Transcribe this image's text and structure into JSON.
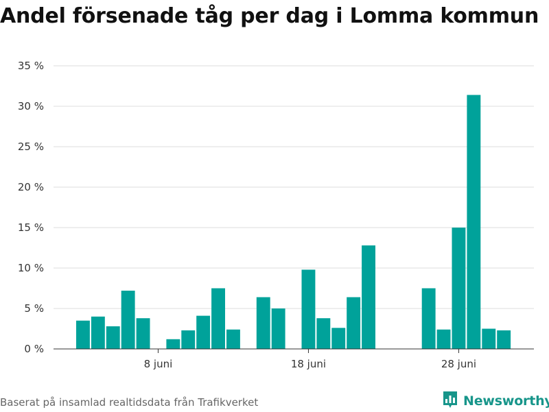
{
  "title": "Andel försenade tåg per dag i Lomma kommun",
  "source": "Baserat på insamlad realtidsdata från Trafikverket",
  "brand": {
    "name": "Newsworthy",
    "icon": "bar-chart-logo-icon",
    "color": "#17958a"
  },
  "colors": {
    "bar": "#00a29a",
    "grid": "#dddddd",
    "axis": "#333333"
  },
  "chart_data": {
    "type": "bar",
    "title": "Andel försenade tåg per dag i Lomma kommun",
    "xlabel": "",
    "ylabel": "",
    "ylim": [
      0,
      35
    ],
    "yticks": [
      {
        "value": 0,
        "label": "0 %"
      },
      {
        "value": 5,
        "label": "5 %"
      },
      {
        "value": 10,
        "label": "10 %"
      },
      {
        "value": 15,
        "label": "15 %"
      },
      {
        "value": 20,
        "label": "20 %"
      },
      {
        "value": 25,
        "label": "25 %"
      },
      {
        "value": 30,
        "label": "30 %"
      },
      {
        "value": 35,
        "label": "35 %"
      }
    ],
    "xticks": [
      {
        "day": 8,
        "label": "8 juni"
      },
      {
        "day": 18,
        "label": "18 juni"
      },
      {
        "day": 28,
        "label": "28 juni"
      }
    ],
    "xlim": [
      1.5,
      31.5
    ],
    "grid": true,
    "bars": [
      {
        "day": 3,
        "value": 3.5
      },
      {
        "day": 4,
        "value": 4.0
      },
      {
        "day": 5,
        "value": 2.8
      },
      {
        "day": 6,
        "value": 7.2
      },
      {
        "day": 7,
        "value": 3.8
      },
      {
        "day": 9,
        "value": 1.2
      },
      {
        "day": 10,
        "value": 2.3
      },
      {
        "day": 11,
        "value": 4.1
      },
      {
        "day": 12,
        "value": 7.5
      },
      {
        "day": 13,
        "value": 2.4
      },
      {
        "day": 15,
        "value": 6.4
      },
      {
        "day": 16,
        "value": 5.0
      },
      {
        "day": 18,
        "value": 9.8
      },
      {
        "day": 19,
        "value": 3.8
      },
      {
        "day": 20,
        "value": 2.6
      },
      {
        "day": 21,
        "value": 6.4
      },
      {
        "day": 22,
        "value": 12.8
      },
      {
        "day": 26,
        "value": 7.5
      },
      {
        "day": 27,
        "value": 2.4
      },
      {
        "day": 28,
        "value": 15.0
      },
      {
        "day": 29,
        "value": 31.4
      },
      {
        "day": 30,
        "value": 2.5
      },
      {
        "day": 31,
        "value": 2.3
      }
    ]
  }
}
